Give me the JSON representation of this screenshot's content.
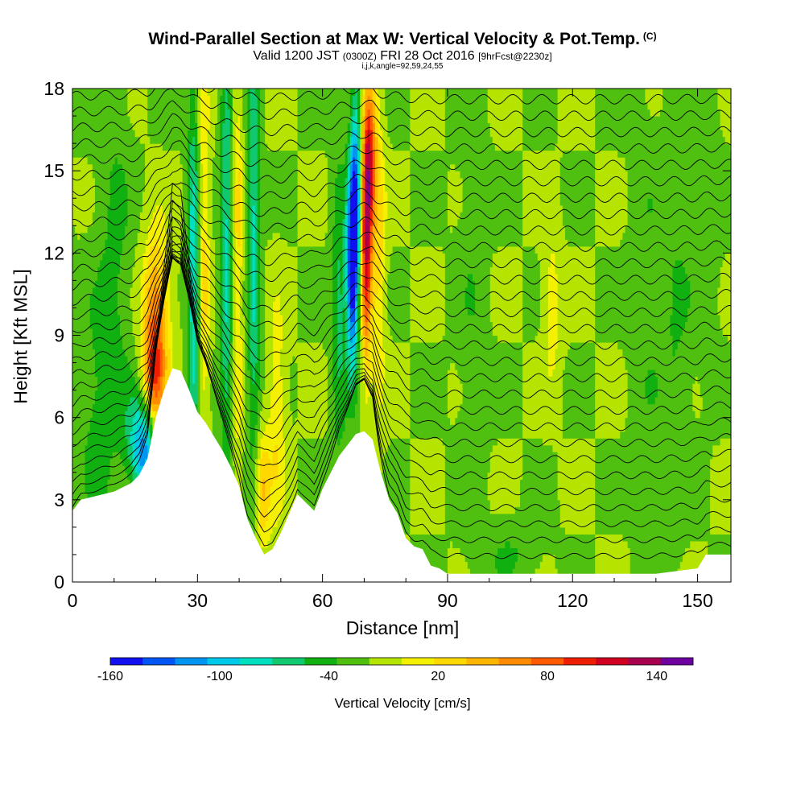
{
  "title": {
    "main": "Wind-Parallel Section at Max W: Vertical Velocity & Pot.Temp.",
    "mark": "(C)",
    "valid_prefix": "Valid 1200 JST",
    "valid_zulu": "(0300Z)",
    "valid_date": "FRI 28 Oct 2016",
    "forecast": "[9hrFcst@2230z]",
    "indices": "i,j,k,angle=92,59,24,55"
  },
  "colors": {
    "bands": [
      "#1010f0",
      "#0055f5",
      "#0095f0",
      "#00c8e8",
      "#00e0c0",
      "#10c870",
      "#10b010",
      "#50c010",
      "#b4e400",
      "#f5f000",
      "#ffd800",
      "#ffb400",
      "#ff8c00",
      "#ff5a00",
      "#f01e00",
      "#d00020",
      "#a80050",
      "#6e00a0"
    ],
    "background": "#f5f000",
    "terrain": "#ffffff",
    "contour": "#000000"
  },
  "chart_data": {
    "type": "heatmap",
    "xlabel": "Distance [nm]",
    "ylabel": "Height [Kft MSL]",
    "xlim": [
      0,
      158
    ],
    "ylim": [
      0,
      18
    ],
    "xticks": [
      0,
      30,
      60,
      90,
      120,
      150
    ],
    "yticks": [
      0,
      3,
      6,
      9,
      12,
      15,
      18
    ],
    "colorbar": {
      "label": "Vertical Velocity [cm/s]",
      "min": -160,
      "max": 160,
      "step": 20,
      "tick_labels": [
        -160,
        -100,
        -40,
        20,
        80,
        140
      ]
    },
    "terrain_profile": {
      "x": [
        0,
        2,
        10,
        14,
        16,
        18,
        20,
        22,
        24,
        26,
        28,
        30,
        32,
        34,
        36,
        38,
        40,
        42,
        44,
        46,
        48,
        50,
        52,
        54,
        56,
        58,
        60,
        62,
        64,
        66,
        68,
        70,
        72,
        74,
        76,
        78,
        80,
        82,
        84,
        86,
        88,
        90,
        95,
        100,
        110,
        120,
        130,
        140,
        150,
        152,
        158
      ],
      "y": [
        2.6,
        3.0,
        3.3,
        3.6,
        3.9,
        4.5,
        6.0,
        7.0,
        7.8,
        7.7,
        7.0,
        6.2,
        5.8,
        5.3,
        4.8,
        4.2,
        3.5,
        2.3,
        1.6,
        1.0,
        1.2,
        1.8,
        2.5,
        3.2,
        2.9,
        2.6,
        3.4,
        4.0,
        4.6,
        5.0,
        5.4,
        5.5,
        5.2,
        4.0,
        3.0,
        2.5,
        1.6,
        1.3,
        1.2,
        0.6,
        0.5,
        0.3,
        0.3,
        0.3,
        0.3,
        0.3,
        0.3,
        0.3,
        0.5,
        1.0,
        1.0
      ]
    },
    "w_features": [
      {
        "x": 20,
        "z": 9.5,
        "sx": 2.2,
        "sz": 2.2,
        "w": 95
      },
      {
        "x": 19.5,
        "z": 7.5,
        "sx": 1.8,
        "sz": 1.2,
        "w": 70
      },
      {
        "x": 17.5,
        "z": 4.7,
        "sx": 1.8,
        "sz": 1.2,
        "w": -95
      },
      {
        "x": 15,
        "z": 5.3,
        "sx": 2.0,
        "sz": 1.3,
        "w": -45
      },
      {
        "x": 29,
        "z": 11,
        "sx": 1.0,
        "sz": 5.0,
        "w": -75
      },
      {
        "x": 31.5,
        "z": 12,
        "sx": 1.0,
        "sz": 5.5,
        "w": 45
      },
      {
        "x": 37,
        "z": 12,
        "sx": 1.1,
        "sz": 6.0,
        "w": -65
      },
      {
        "x": 39.5,
        "z": 12,
        "sx": 1.0,
        "sz": 6.0,
        "w": 45
      },
      {
        "x": 43.5,
        "z": 12.5,
        "sx": 1.1,
        "sz": 6.0,
        "w": -65
      },
      {
        "x": 45.5,
        "z": 3.3,
        "sx": 1.3,
        "sz": 1.5,
        "w": 60
      },
      {
        "x": 49,
        "z": 6.0,
        "sx": 1.5,
        "sz": 3.0,
        "w": 40
      },
      {
        "x": 67,
        "z": 11.5,
        "sx": 0.9,
        "sz": 2.5,
        "w": -150
      },
      {
        "x": 68,
        "z": 14,
        "sx": 0.9,
        "sz": 3.0,
        "w": -110
      },
      {
        "x": 70.5,
        "z": 12.5,
        "sx": 0.9,
        "sz": 3.0,
        "w": 155
      },
      {
        "x": 71.5,
        "z": 15.5,
        "sx": 1.0,
        "sz": 2.0,
        "w": 100
      },
      {
        "x": 73.5,
        "z": 12,
        "sx": 1.2,
        "sz": 4.0,
        "w": 45
      },
      {
        "x": 64,
        "z": 10,
        "sx": 1.3,
        "sz": 4.0,
        "w": -45
      },
      {
        "x": 10,
        "z": 11,
        "sx": 3.0,
        "sz": 6.0,
        "w": -25
      },
      {
        "x": 5,
        "z": 6,
        "sx": 3.0,
        "sz": 3.0,
        "w": -22
      },
      {
        "x": 96,
        "z": 10,
        "sx": 2.5,
        "sz": 6.0,
        "w": -15
      },
      {
        "x": 138,
        "z": 10,
        "sx": 3.0,
        "sz": 6.0,
        "w": -15
      },
      {
        "x": 145,
        "z": 9,
        "sx": 2.5,
        "sz": 5.0,
        "w": -20
      },
      {
        "x": 105,
        "z": 1.0,
        "sx": 5.0,
        "sz": 0.8,
        "w": -20
      },
      {
        "x": 115,
        "z": 10,
        "sx": 1.5,
        "sz": 2.0,
        "w": 35
      },
      {
        "x": 152,
        "z": 14,
        "sx": 2.5,
        "sz": 4.0,
        "w": -18
      }
    ],
    "theta_contours": {
      "start_height": 0.8,
      "spacing": 0.6,
      "count": 29
    }
  }
}
